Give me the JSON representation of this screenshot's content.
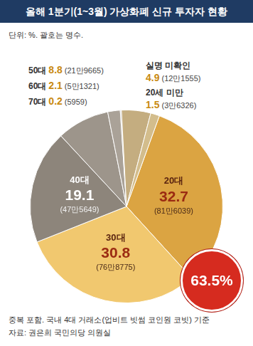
{
  "chart_data": {
    "type": "pie",
    "title": "올해 1분기(1~3월) 가상화폐 신규 투자자 현황",
    "subtitle": "단위: %. 괄호는 명수.",
    "categories": [
      "20대",
      "30대",
      "40대",
      "50대",
      "60대",
      "70대",
      "실명 미확인",
      "20세 미만"
    ],
    "values": [
      32.7,
      30.8,
      19.1,
      8.8,
      2.1,
      0.2,
      4.9,
      1.5
    ],
    "count_labels": [
      "(81만6039)",
      "(76만8775)",
      "(47만5649)",
      "(21만9665)",
      "(5만1321)",
      "(5959)",
      "(12만1555)",
      "(3만6326)"
    ],
    "colors": [
      "#dba442",
      "#f1c86f",
      "#8d857b",
      "#9d958b",
      "#aaa298",
      "#b6afa5",
      "#c4ad80",
      "#d3bd8c"
    ],
    "data_labels": true,
    "annotations": [
      {
        "text": "63.5%"
      }
    ],
    "notes": [
      "중복 포함. 국내 4대 거래소(업비트 빗썸 코인원 코빗) 기준",
      "자료: 권은희 국민의당 의원실"
    ]
  }
}
